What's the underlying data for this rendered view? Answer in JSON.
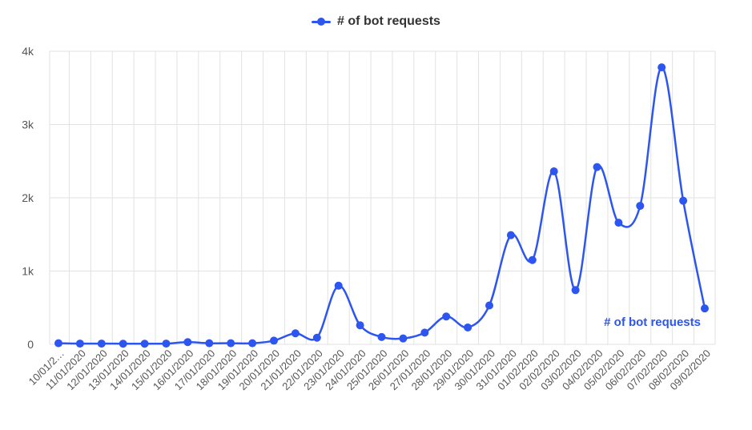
{
  "legend": {
    "series_label": "# of bot requests"
  },
  "colors": {
    "series": "#2d55f0",
    "grid": "#e2e2e2",
    "axis_text": "#555555"
  },
  "chart_data": {
    "type": "line",
    "title": "",
    "xlabel": "",
    "ylabel": "",
    "ylim": [
      0,
      4000
    ],
    "y_ticks": [
      0,
      1000,
      2000,
      3000,
      4000
    ],
    "y_tick_labels": [
      "0",
      "1k",
      "2k",
      "3k",
      "4k"
    ],
    "grid": true,
    "legend_position": "top-center",
    "categories": [
      "10/01/2…",
      "11/01/2020",
      "12/01/2020",
      "13/01/2020",
      "14/01/2020",
      "15/01/2020",
      "16/01/2020",
      "17/01/2020",
      "18/01/2020",
      "19/01/2020",
      "20/01/2020",
      "21/01/2020",
      "22/01/2020",
      "23/01/2020",
      "24/01/2020",
      "25/01/2020",
      "26/01/2020",
      "27/01/2020",
      "28/01/2020",
      "29/01/2020",
      "30/01/2020",
      "31/01/2020",
      "01/02/2020",
      "02/02/2020",
      "03/02/2020",
      "04/02/2020",
      "05/02/2020",
      "06/02/2020",
      "07/02/2020",
      "08/02/2020",
      "09/02/2020"
    ],
    "series": [
      {
        "name": "# of bot requests",
        "values": [
          15,
          10,
          10,
          8,
          8,
          10,
          30,
          15,
          15,
          15,
          50,
          150,
          90,
          800,
          260,
          100,
          80,
          160,
          380,
          230,
          530,
          1490,
          1150,
          2360,
          740,
          2420,
          1660,
          1890,
          3780,
          1960,
          490
        ],
        "end_label": "# of bot requests"
      }
    ]
  }
}
